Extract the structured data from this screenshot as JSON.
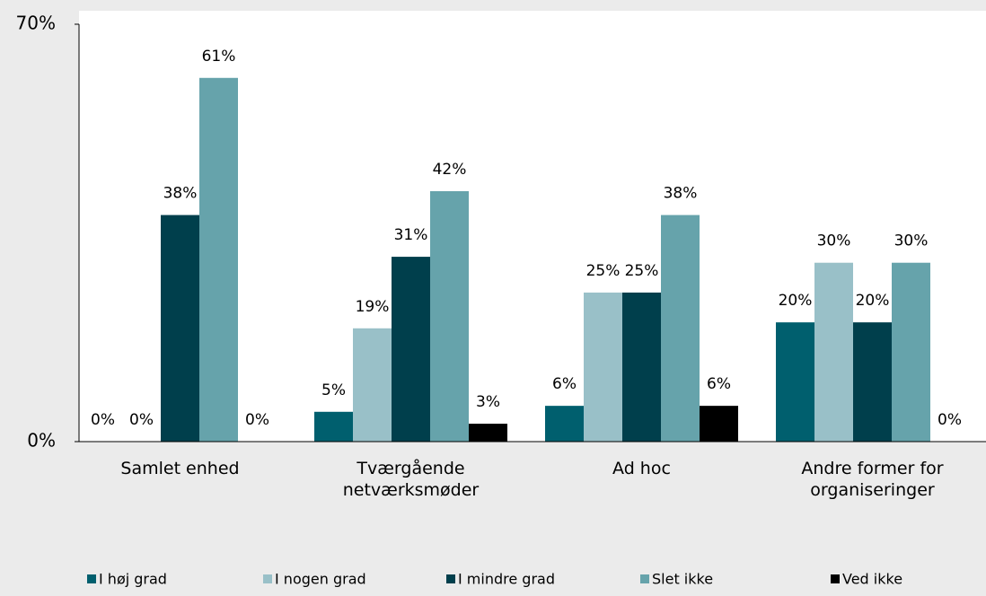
{
  "chart_data": {
    "type": "bar",
    "categories": [
      "Samlet enhed",
      "Tværgående netværksmøder",
      "Ad hoc",
      "Andre former for organiseringer"
    ],
    "series": [
      {
        "name": "I høj grad",
        "color": "#005f6e",
        "values": [
          0,
          5,
          6,
          20
        ],
        "value_labels": [
          "0%",
          "5%",
          "6%",
          "20%"
        ]
      },
      {
        "name": "I nogen grad",
        "color": "#99c0c8",
        "values": [
          0,
          19,
          25,
          30
        ],
        "value_labels": [
          "0%",
          "19%",
          "25%",
          "30%"
        ]
      },
      {
        "name": "I mindre grad",
        "color": "#003f4c",
        "values": [
          38,
          31,
          25,
          20
        ],
        "value_labels": [
          "38%",
          "31%",
          "25%",
          "20%"
        ]
      },
      {
        "name": "Slet ikke",
        "color": "#66a3ab",
        "values": [
          61,
          42,
          38,
          30
        ],
        "value_labels": [
          "61%",
          "42%",
          "38%",
          "30%"
        ]
      },
      {
        "name": "Ved ikke",
        "color": "#000000",
        "values": [
          0,
          3,
          6,
          0
        ],
        "value_labels": [
          "0%",
          "3%",
          "6%",
          "0%"
        ]
      }
    ],
    "ylim": [
      0,
      70
    ],
    "yticks": [
      {
        "value": 0,
        "label": "0%"
      },
      {
        "value": 70,
        "label": "70%"
      }
    ],
    "legend": "bottom"
  }
}
